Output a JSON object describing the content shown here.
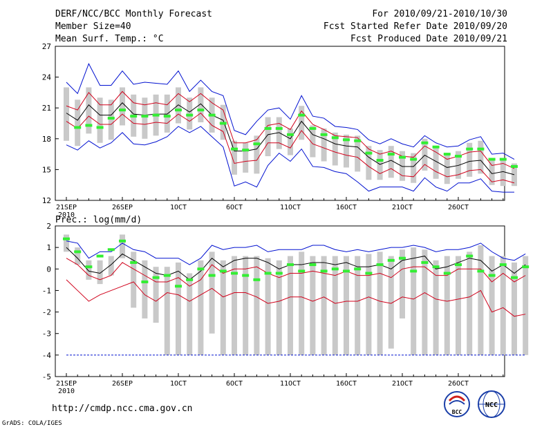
{
  "header": {
    "title": "DERF/NCC/BCC Monthly Forecast",
    "member_size": "Member Size=40",
    "top_variable": "Mean Surf. Temp.: °C",
    "period": "For 2010/09/21-2010/10/30",
    "fcst_started": "Fcst Started Refer Date 2010/09/20",
    "fcst_produced": "Fcst Produced Date 2010/09/21"
  },
  "bottom_variable": "Prec.: log(mm/d)",
  "footer": {
    "url": "http://cmdp.ncc.cma.gov.cn",
    "grads": "GrADS: COLA/IGES",
    "logo_bcc": "BCC",
    "logo_ncc": "NCC"
  },
  "colors": {
    "mean": "#000000",
    "spread": "#d0001a",
    "extreme": "#0010d0",
    "box": "#c9c9c9",
    "member_mark": "#33ee33"
  },
  "chart_data": [
    {
      "type": "box-spread",
      "title": "Mean Surf. Temp.: °C",
      "x_tick_labels": [
        "21SEP",
        "26SEP",
        "1OCT",
        "6OCT",
        "11OCT",
        "16OCT",
        "21OCT",
        "26OCT"
      ],
      "x_sub_label": "2010",
      "ylim": [
        12,
        27
      ],
      "y_ticks": [
        12,
        15,
        18,
        21,
        24,
        27
      ],
      "mean": [
        20.5,
        19.8,
        21.3,
        20.3,
        20.3,
        21.5,
        20.4,
        20.3,
        20.4,
        20.4,
        21.3,
        20.6,
        21.4,
        20.3,
        19.8,
        16.8,
        16.8,
        17.0,
        18.4,
        18.6,
        18.0,
        19.7,
        18.4,
        18.0,
        17.5,
        17.3,
        17.2,
        16.2,
        15.5,
        15.9,
        15.3,
        15.3,
        16.4,
        15.8,
        15.2,
        15.4,
        15.8,
        15.9,
        14.6,
        14.8,
        14.5
      ],
      "upper_spread": [
        21.2,
        20.8,
        22.5,
        21.3,
        21.3,
        22.6,
        21.5,
        21.3,
        21.5,
        21.3,
        22.4,
        21.6,
        22.4,
        21.5,
        20.8,
        17.6,
        17.6,
        17.9,
        19.3,
        19.5,
        18.9,
        20.7,
        19.4,
        18.9,
        18.3,
        18.2,
        18.1,
        17.0,
        16.5,
        16.8,
        16.3,
        16.2,
        17.3,
        16.7,
        16.0,
        16.3,
        16.7,
        16.8,
        15.4,
        15.6,
        15.1
      ],
      "lower_spread": [
        19.7,
        19.0,
        20.2,
        19.4,
        19.4,
        20.4,
        19.5,
        19.4,
        19.6,
        19.5,
        20.4,
        19.7,
        20.5,
        19.3,
        18.7,
        15.6,
        15.8,
        15.9,
        17.6,
        17.6,
        17.1,
        18.8,
        17.5,
        17.1,
        16.7,
        16.4,
        16.2,
        15.3,
        14.6,
        15.1,
        14.4,
        14.3,
        15.5,
        14.8,
        14.3,
        14.5,
        14.9,
        15.0,
        13.8,
        14.0,
        13.7
      ],
      "upper_extreme": [
        23.5,
        22.4,
        25.3,
        23.2,
        23.2,
        24.6,
        23.3,
        23.5,
        23.4,
        23.3,
        24.6,
        22.6,
        23.7,
        22.6,
        22.2,
        18.8,
        18.4,
        19.7,
        20.8,
        21.0,
        19.9,
        22.2,
        20.2,
        20.0,
        19.2,
        19.1,
        18.9,
        17.9,
        17.5,
        18.0,
        17.5,
        17.2,
        18.3,
        17.6,
        17.2,
        17.3,
        17.9,
        18.2,
        16.5,
        16.6,
        16.0
      ],
      "lower_extreme": [
        17.4,
        16.9,
        17.8,
        17.1,
        17.6,
        18.6,
        17.5,
        17.4,
        17.7,
        18.2,
        19.2,
        18.6,
        19.2,
        18.2,
        17.2,
        13.4,
        13.8,
        13.3,
        15.4,
        16.6,
        15.8,
        17.0,
        15.3,
        15.2,
        14.8,
        14.6,
        13.8,
        12.9,
        13.3,
        13.3,
        13.3,
        12.9,
        14.2,
        13.3,
        12.9,
        13.7,
        13.7,
        14.1,
        12.9,
        12.8,
        12.8
      ],
      "box_high": [
        23.0,
        21.8,
        23.0,
        22.0,
        21.8,
        23.0,
        22.3,
        22.0,
        22.3,
        22.3,
        23.0,
        22.0,
        23.0,
        22.0,
        21.3,
        17.8,
        17.6,
        18.3,
        20.1,
        20.1,
        19.0,
        21.2,
        19.3,
        19.0,
        18.6,
        18.4,
        18.3,
        17.3,
        16.9,
        17.3,
        16.8,
        16.6,
        18.0,
        17.3,
        16.6,
        16.8,
        17.6,
        17.8,
        15.9,
        16.1,
        15.6
      ],
      "box_low": [
        17.8,
        17.3,
        18.5,
        17.6,
        17.9,
        19.3,
        18.2,
        18.0,
        18.3,
        18.6,
        19.5,
        18.9,
        19.6,
        18.6,
        17.9,
        14.5,
        14.7,
        14.6,
        16.3,
        17.0,
        16.4,
        17.9,
        16.2,
        15.8,
        15.4,
        15.2,
        14.8,
        14.0,
        14.0,
        14.2,
        13.9,
        13.7,
        14.9,
        14.1,
        13.6,
        14.1,
        14.3,
        14.6,
        13.5,
        13.4,
        13.4
      ],
      "member": [
        null,
        19.1,
        19.3,
        19.1,
        20.0,
        20.8,
        20.2,
        20.2,
        20.3,
        20.2,
        20.8,
        20.3,
        20.8,
        20.3,
        19.5,
        17.0,
        16.9,
        17.5,
        19.0,
        19.0,
        18.4,
        20.3,
        19.0,
        18.4,
        18.1,
        17.9,
        17.8,
        16.6,
        15.9,
        16.5,
        16.2,
        16.0,
        17.6,
        17.2,
        16.5,
        16.3,
        17.0,
        17.0,
        16.0,
        16.0,
        15.3
      ]
    },
    {
      "type": "box-spread",
      "title": "Prec.: log(mm/d)",
      "x_tick_labels": [
        "21SEP",
        "26SEP",
        "1OCT",
        "6OCT",
        "11OCT",
        "16OCT",
        "21OCT",
        "26OCT"
      ],
      "x_sub_label": "2010",
      "ylim": [
        -5,
        2
      ],
      "y_ticks": [
        -5,
        -4,
        -3,
        -2,
        -1,
        0,
        1,
        2
      ],
      "mean": [
        1.0,
        0.5,
        -0.1,
        -0.2,
        0.2,
        0.7,
        0.4,
        0.1,
        -0.2,
        -0.3,
        -0.1,
        -0.5,
        -0.1,
        0.5,
        0.1,
        0.4,
        0.5,
        0.5,
        0.3,
        0.0,
        0.2,
        0.2,
        0.3,
        0.3,
        0.2,
        0.3,
        0.1,
        0.1,
        0.2,
        0.0,
        0.4,
        0.5,
        0.6,
        0.0,
        0.1,
        0.3,
        0.5,
        0.4,
        -0.1,
        0.2,
        -0.2,
        0.2
      ],
      "upper_spread": [
        0.5,
        0.2,
        -0.3,
        -0.5,
        -0.3,
        0.3,
        0.0,
        -0.3,
        -0.6,
        -0.6,
        -0.4,
        -0.8,
        -0.5,
        0.2,
        -0.2,
        0.0,
        0.0,
        0.1,
        -0.2,
        -0.4,
        -0.2,
        -0.2,
        -0.1,
        -0.2,
        -0.3,
        -0.1,
        -0.3,
        -0.3,
        -0.2,
        -0.4,
        0.0,
        0.1,
        0.1,
        -0.3,
        -0.3,
        0.0,
        0.0,
        0.0,
        -0.6,
        -0.2,
        -0.6,
        -0.3
      ],
      "lower_spread": [
        -0.5,
        -1.0,
        -1.5,
        -1.2,
        -1.0,
        -0.8,
        -0.6,
        -1.2,
        -1.5,
        -1.1,
        -1.2,
        -1.5,
        -1.2,
        -0.9,
        -1.3,
        -1.1,
        -1.1,
        -1.3,
        -1.6,
        -1.5,
        -1.3,
        -1.3,
        -1.5,
        -1.3,
        -1.6,
        -1.5,
        -1.5,
        -1.3,
        -1.5,
        -1.6,
        -1.3,
        -1.4,
        -1.1,
        -1.4,
        -1.5,
        -1.4,
        -1.3,
        -1.0,
        -2.0,
        -1.8,
        -2.2,
        -2.1
      ],
      "upper_extreme": [
        1.3,
        1.2,
        0.5,
        0.8,
        0.8,
        1.2,
        0.9,
        0.8,
        0.5,
        0.5,
        0.5,
        0.2,
        0.5,
        1.1,
        0.9,
        1.0,
        1.0,
        1.1,
        0.8,
        0.9,
        0.9,
        0.9,
        1.1,
        1.1,
        0.9,
        0.8,
        0.9,
        0.8,
        0.9,
        1.0,
        1.0,
        1.1,
        1.0,
        0.8,
        0.9,
        0.9,
        1.0,
        1.2,
        0.8,
        0.5,
        0.4,
        0.7
      ],
      "box_high": [
        1.6,
        1.0,
        0.4,
        0.4,
        0.6,
        1.6,
        0.8,
        0.4,
        0.1,
        0.1,
        0.3,
        -0.2,
        0.4,
        0.8,
        0.4,
        0.6,
        0.6,
        0.6,
        0.5,
        0.4,
        0.6,
        0.8,
        0.6,
        0.6,
        0.6,
        0.6,
        0.6,
        0.7,
        0.8,
        0.6,
        0.9,
        1.0,
        0.9,
        0.4,
        0.6,
        0.6,
        0.8,
        1.1,
        0.6,
        0.6,
        0.3,
        0.6
      ],
      "box_low": [
        0.8,
        0.2,
        -0.5,
        -0.7,
        -0.3,
        0.5,
        -1.8,
        -2.3,
        -2.5,
        -4.0,
        -4.0,
        -4.0,
        -4.0,
        -3.0,
        -4.0,
        -4.0,
        -4.0,
        -4.0,
        -4.0,
        -4.0,
        -4.0,
        -4.0,
        -4.0,
        -4.0,
        -4.0,
        -4.0,
        -4.0,
        -4.0,
        -4.0,
        -3.7,
        -2.3,
        -4.0,
        -4.0,
        -4.0,
        -4.0,
        -4.0,
        -4.0,
        -4.0,
        -4.0,
        -4.0,
        -4.0,
        -4.0
      ],
      "member": [
        1.4,
        0.8,
        0.1,
        0.6,
        0.9,
        1.3,
        0.3,
        -0.6,
        -0.4,
        -0.3,
        -0.8,
        -0.5,
        0.0,
        -0.3,
        -0.1,
        -0.2,
        -0.3,
        -0.5,
        -0.2,
        -0.2,
        0.2,
        -0.1,
        0.2,
        -0.1,
        0.0,
        -0.1,
        0.0,
        -0.2,
        0.2,
        0.4,
        0.5,
        -0.1,
        0.3,
        0.1,
        -0.2,
        0.2,
        0.6,
        -0.1,
        -0.3,
        0.2,
        -0.4,
        0.1
      ],
      "lower_bound": -4.0
    }
  ]
}
